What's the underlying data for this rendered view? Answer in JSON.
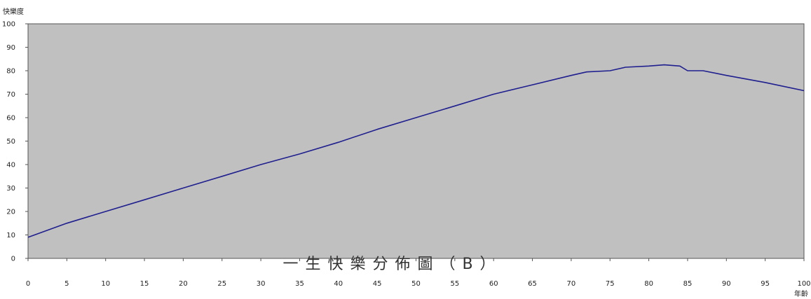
{
  "chart_data": {
    "type": "line",
    "title": "一生快樂分佈圖（B）",
    "xlabel": "年齡",
    "ylabel": "快樂度",
    "xlim": [
      0,
      100
    ],
    "ylim": [
      0,
      100
    ],
    "x_ticks": [
      0,
      5,
      10,
      15,
      20,
      25,
      30,
      35,
      40,
      45,
      50,
      55,
      60,
      65,
      70,
      75,
      80,
      85,
      90,
      95,
      100
    ],
    "y_ticks": [
      0,
      10,
      20,
      30,
      40,
      50,
      60,
      70,
      80,
      90,
      100
    ],
    "grid": false,
    "legend": "none",
    "colors": {
      "plot_background": "#c0c0c0",
      "line": "#1f1f8f"
    },
    "series": [
      {
        "x": [
          0,
          5,
          10,
          15,
          20,
          25,
          30,
          35,
          40,
          45,
          50,
          55,
          60,
          65,
          70,
          72,
          75,
          77,
          80,
          82,
          84,
          85,
          87,
          90,
          95,
          100
        ],
        "y": [
          9,
          15,
          20,
          25,
          30,
          35,
          40,
          44.5,
          49.5,
          55,
          60,
          65,
          70,
          74,
          78,
          79.5,
          80,
          81.5,
          82,
          82.5,
          82,
          80,
          80,
          78,
          75,
          71.5
        ]
      }
    ]
  }
}
